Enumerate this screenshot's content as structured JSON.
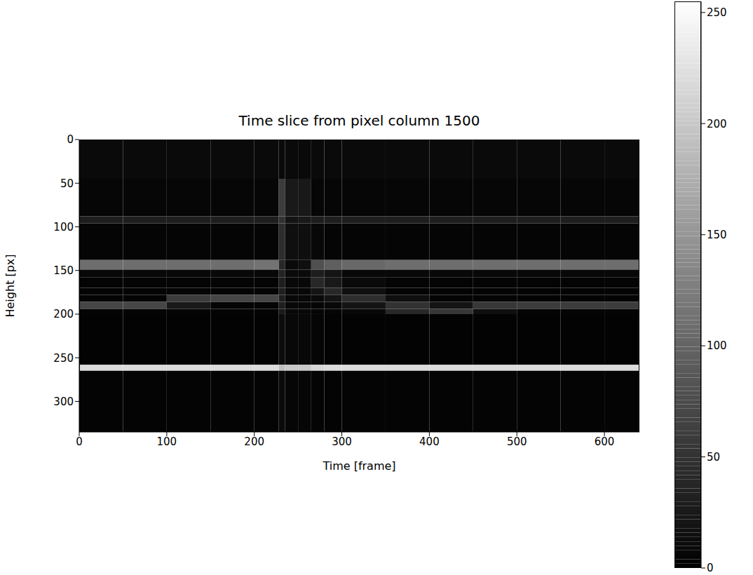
{
  "chart_data": {
    "type": "heatmap",
    "title": "Time slice from pixel column 1500",
    "x_label": "Time [frame]",
    "y_label": "Height [px]",
    "xlim": [
      0,
      640
    ],
    "ylim": [
      335,
      0
    ],
    "xticks": [
      0,
      100,
      200,
      300,
      400,
      500,
      600
    ],
    "yticks": [
      0,
      50,
      100,
      150,
      200,
      250,
      300
    ],
    "color": "gray",
    "x_edges": [
      0,
      50,
      100,
      150,
      200,
      228,
      235,
      250,
      265,
      280,
      300,
      350,
      400,
      450,
      500,
      550,
      600,
      640
    ],
    "y_edges": [
      0,
      45,
      88,
      96,
      138,
      149,
      158,
      170,
      178,
      186,
      194,
      200,
      258,
      265,
      335
    ],
    "cells": [
      [
        10,
        10,
        10,
        10,
        10,
        10,
        10,
        10,
        10,
        10,
        10,
        10,
        10,
        10,
        10,
        10,
        10
      ],
      [
        6,
        6,
        6,
        6,
        6,
        60,
        25,
        25,
        6,
        6,
        6,
        6,
        6,
        6,
        6,
        6,
        6
      ],
      [
        30,
        30,
        30,
        30,
        30,
        50,
        20,
        25,
        30,
        30,
        30,
        30,
        30,
        30,
        30,
        30,
        30
      ],
      [
        5,
        5,
        5,
        5,
        5,
        45,
        15,
        15,
        8,
        5,
        5,
        5,
        5,
        5,
        5,
        5,
        5
      ],
      [
        110,
        110,
        110,
        110,
        115,
        40,
        10,
        15,
        80,
        95,
        105,
        110,
        110,
        110,
        110,
        110,
        110
      ],
      [
        8,
        8,
        8,
        8,
        8,
        35,
        10,
        10,
        30,
        20,
        8,
        8,
        8,
        8,
        8,
        8,
        8
      ],
      [
        4,
        4,
        4,
        4,
        4,
        30,
        8,
        8,
        40,
        25,
        10,
        4,
        4,
        4,
        4,
        4,
        4
      ],
      [
        4,
        4,
        4,
        4,
        4,
        30,
        8,
        8,
        20,
        40,
        15,
        4,
        4,
        4,
        4,
        4,
        4
      ],
      [
        4,
        4,
        60,
        70,
        70,
        30,
        8,
        8,
        10,
        20,
        45,
        15,
        4,
        4,
        4,
        4,
        4
      ],
      [
        70,
        70,
        25,
        4,
        4,
        30,
        8,
        8,
        6,
        8,
        20,
        50,
        20,
        55,
        60,
        60,
        60
      ],
      [
        4,
        4,
        4,
        4,
        4,
        25,
        8,
        8,
        5,
        5,
        8,
        40,
        55,
        15,
        4,
        4,
        4
      ],
      [
        3,
        3,
        3,
        3,
        3,
        12,
        8,
        8,
        5,
        3,
        3,
        3,
        3,
        3,
        3,
        3,
        3
      ],
      [
        220,
        220,
        220,
        220,
        220,
        190,
        200,
        200,
        215,
        220,
        220,
        220,
        220,
        220,
        220,
        220,
        220
      ],
      [
        4,
        4,
        4,
        4,
        4,
        10,
        6,
        6,
        4,
        4,
        4,
        4,
        4,
        4,
        4,
        4,
        4
      ]
    ],
    "colorbar": {
      "range": [
        0,
        255
      ],
      "ticks": [
        0,
        50,
        100,
        150,
        200,
        250
      ]
    }
  }
}
